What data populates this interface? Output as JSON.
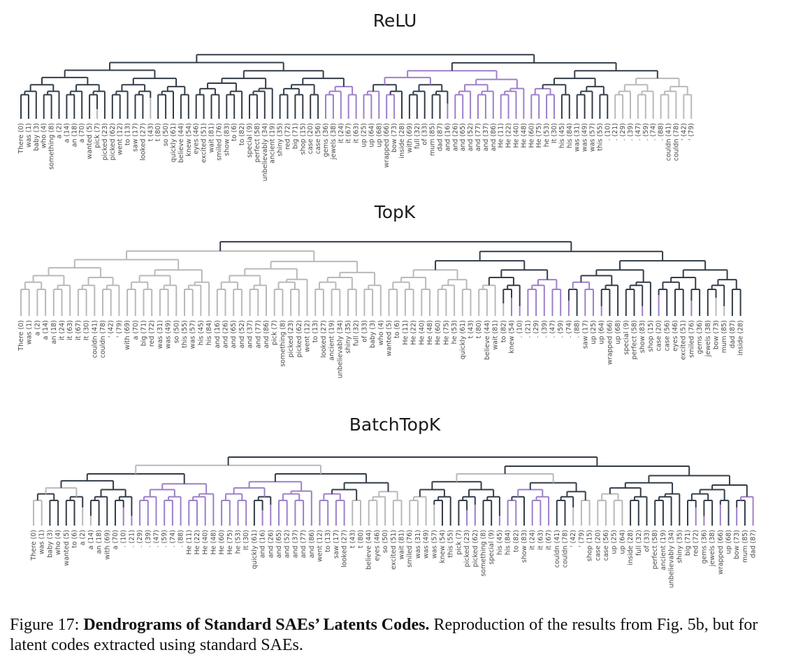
{
  "panels": [
    {
      "title": "ReLU",
      "leaves": [
        "There (0)",
        "was (1)",
        "baby (3)",
        "who (4)",
        "something (8)",
        "a (2)",
        "a (14)",
        "an (18)",
        "a (70)",
        "wanted (5)",
        "pick (7)",
        "picked (23)",
        "picked (62)",
        "went (12)",
        "to (13)",
        "saw (17)",
        "looked (27)",
        "t (43)",
        "t (80)",
        "so (50)",
        "quickly (61)",
        "believe (44)",
        "knew (54)",
        "eyes (46)",
        "excited (51)",
        "wait (81)",
        "smiled (76)",
        "show (83)",
        "to (6)",
        "to (82)",
        "special (9)",
        "perfect (58)",
        "unbelievably (34)",
        "ancient (19)",
        "shiny (35)",
        "red (72)",
        "big (71)",
        "shop (15)",
        "case (20)",
        "case (56)",
        "gems (36)",
        "jewels (38)",
        "it (24)",
        "it (67)",
        "it (63)",
        "up (25)",
        "up (64)",
        "up (68)",
        "wrapped (66)",
        "bow (73)",
        "inside (28)",
        "with (69)",
        "full (32)",
        "of (33)",
        "mum (85)",
        "dad (87)",
        "and (16)",
        "and (26)",
        "and (65)",
        "and (52)",
        "and (77)",
        "and (37)",
        "and (86)",
        "He (11)",
        "He (22)",
        "He (40)",
        "He (48)",
        "He (60)",
        "He (75)",
        "he (53)",
        "It (30)",
        "his (45)",
        "his (84)",
        "was (31)",
        "was (49)",
        "was (57)",
        "this (55)",
        ". (10)",
        ". (21)",
        ". (29)",
        ". (39)",
        ". (47)",
        ". (59)",
        ". (74)",
        ". (88)",
        "couldn (41)",
        "couldn (78)",
        "' (42)",
        "' (79)"
      ]
    },
    {
      "title": "TopK",
      "leaves": [
        "There (0)",
        "was (1)",
        "a (2)",
        "a (14)",
        "an (18)",
        "it (24)",
        "it (63)",
        "it (67)",
        "It (30)",
        "couldn (41)",
        "couldn (78)",
        "' (42)",
        "' (79)",
        "with (69)",
        "a (70)",
        "big (71)",
        "red (72)",
        "was (31)",
        "was (49)",
        "so (50)",
        "this (55)",
        "was (57)",
        "his (45)",
        "his (84)",
        "and (16)",
        "and (26)",
        "and (65)",
        "and (52)",
        "and (37)",
        "and (77)",
        "and (86)",
        "pick (7)",
        "something (8)",
        "picked (23)",
        "picked (62)",
        "went (12)",
        "to (13)",
        "looked (27)",
        "ancient (19)",
        "unbelievably (34)",
        "shiny (35)",
        "full (32)",
        "of (33)",
        "baby (3)",
        "who (4)",
        "wanted (5)",
        "to (6)",
        "He (11)",
        "He (22)",
        "He (40)",
        "He (48)",
        "He (60)",
        "He (75)",
        "he (53)",
        "quickly (61)",
        "t (43)",
        "t (80)",
        "believe (44)",
        "wait (81)",
        "to (82)",
        "knew (54)",
        ". (10)",
        ". (21)",
        ". (29)",
        ". (39)",
        ". (47)",
        ". (59)",
        ". (74)",
        ". (88)",
        "saw (17)",
        "up (25)",
        "up (64)",
        "wrapped (66)",
        "up (68)",
        "special (9)",
        "perfect (58)",
        "show (83)",
        "shop (15)",
        "case (20)",
        "case (56)",
        "eyes (46)",
        "excited (51)",
        "smiled (76)",
        "gems (36)",
        "jewels (38)",
        "bow (73)",
        "mum (85)",
        "dad (87)",
        "inside (28)"
      ]
    },
    {
      "title": "BatchTopK",
      "leaves": [
        "There (0)",
        "was (1)",
        "baby (3)",
        "who (4)",
        "wanted (5)",
        "to (6)",
        "a (2)",
        "a (14)",
        "an (18)",
        "with (69)",
        "a (70)",
        ". (10)",
        ". (21)",
        ". (29)",
        ". (39)",
        ". (47)",
        ". (59)",
        ". (74)",
        ". (88)",
        "He (11)",
        "He (22)",
        "He (40)",
        "He (48)",
        "He (60)",
        "He (75)",
        "he (53)",
        "It (30)",
        "quickly (61)",
        "and (16)",
        "and (26)",
        "and (65)",
        "and (52)",
        "and (37)",
        "and (77)",
        "and (86)",
        "went (12)",
        "to (13)",
        "saw (17)",
        "looked (27)",
        "t (43)",
        "t (80)",
        "believe (44)",
        "eyes (46)",
        "so (50)",
        "excited (51)",
        "wait (81)",
        "smiled (76)",
        "was (31)",
        "was (49)",
        "was (57)",
        "knew (54)",
        "this (55)",
        "pick (7)",
        "picked (23)",
        "picked (62)",
        "something (8)",
        "special (9)",
        "his (45)",
        "his (84)",
        "to (82)",
        "show (83)",
        "it (24)",
        "it (63)",
        "it (67)",
        "couldn (41)",
        "couldn (78)",
        "' (42)",
        "' (79)",
        "shop (15)",
        "case (20)",
        "case (56)",
        "up (25)",
        "up (64)",
        "inside (28)",
        "full (32)",
        "of (33)",
        "perfect (58)",
        "ancient (19)",
        "unbelievably (34)",
        "shiny (35)",
        "big (71)",
        "red (72)",
        "gems (36)",
        "jewels (38)",
        "wrapped (66)",
        "up (68)",
        "bow (73)",
        "mum (85)",
        "dad (87)"
      ]
    }
  ],
  "caption": {
    "label": "Figure 17:",
    "title": "Dendrograms of Standard SAEs’ Latents Codes.",
    "text": "Reproduction of the results from Fig. 5b, but for latent codes extracted using standard SAEs."
  },
  "colors": {
    "dark": "#333d48",
    "purple": "#9d7fc9",
    "gray": "#b9b9b9"
  }
}
